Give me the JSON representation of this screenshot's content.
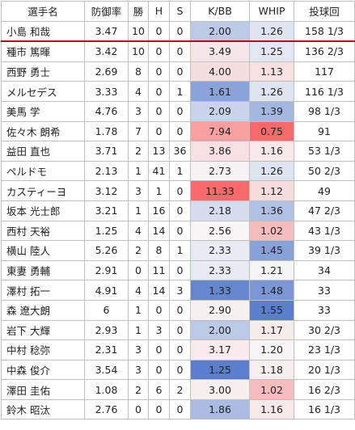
{
  "table": {
    "headers": [
      "選手名",
      "防御率",
      "勝",
      "H",
      "S",
      "K/BB",
      "WHIP",
      "投球回"
    ],
    "rows": [
      [
        "小島 和哉",
        "3.47",
        "10",
        "0",
        "0",
        "2.00",
        "1.26",
        "158 1/3"
      ],
      [
        "種市 篤暉",
        "3.42",
        "10",
        "0",
        "0",
        "3.49",
        "1.25",
        "136 2/3"
      ],
      [
        "西野 勇士",
        "2.69",
        "8",
        "0",
        "0",
        "4.00",
        "1.13",
        "117"
      ],
      [
        "メルセデス",
        "3.33",
        "4",
        "0",
        "1",
        "1.61",
        "1.26",
        "116 1/3"
      ],
      [
        "美馬 学",
        "4.76",
        "3",
        "0",
        "0",
        "2.09",
        "1.39",
        "98 1/3"
      ],
      [
        "佐々木 朗希",
        "1.78",
        "7",
        "0",
        "0",
        "7.94",
        "0.75",
        "91"
      ],
      [
        "益田 直也",
        "3.71",
        "2",
        "13",
        "36",
        "3.86",
        "1.16",
        "53 1/3"
      ],
      [
        "ペルドモ",
        "2.13",
        "1",
        "41",
        "1",
        "2.73",
        "1.26",
        "50 2/3"
      ],
      [
        "カスティーヨ",
        "3.12",
        "3",
        "1",
        "0",
        "11.33",
        "1.12",
        "49"
      ],
      [
        "坂本 光士郎",
        "3.21",
        "1",
        "16",
        "0",
        "2.18",
        "1.36",
        "47 2/3"
      ],
      [
        "西村 天裕",
        "1.25",
        "4",
        "14",
        "0",
        "2.56",
        "1.02",
        "43 1/3"
      ],
      [
        "横山 陸人",
        "5.26",
        "2",
        "8",
        "1",
        "2.33",
        "1.45",
        "39 1/3"
      ],
      [
        "東妻 勇輔",
        "2.91",
        "0",
        "11",
        "0",
        "2.33",
        "1.21",
        "34"
      ],
      [
        "澤村 拓一",
        "4.91",
        "4",
        "14",
        "3",
        "1.33",
        "1.48",
        "33"
      ],
      [
        "森 遼大朗",
        "6",
        "1",
        "0",
        "0",
        "2.90",
        "1.55",
        "33"
      ],
      [
        "岩下 大輝",
        "2.93",
        "1",
        "3",
        "0",
        "2.00",
        "1.17",
        "30 2/3"
      ],
      [
        "中村 稔弥",
        "2.31",
        "3",
        "0",
        "0",
        "3.17",
        "1.20",
        "23 1/3"
      ],
      [
        "中森 俊介",
        "3.54",
        "3",
        "0",
        "0",
        "1.25",
        "1.18",
        "20 1/3"
      ],
      [
        "澤田 圭佑",
        "1.08",
        "2",
        "6",
        "2",
        "3.00",
        "1.02",
        "16 2/3"
      ],
      [
        "鈴木 昭汰",
        "2.76",
        "0",
        "0",
        "0",
        "1.86",
        "1.16",
        "16 1/3"
      ]
    ],
    "colors": {
      "grid": "#bfbfbf",
      "separator": "#c00000",
      "scale_low": "#5b7fcc",
      "scale_mid": "#f7f7f7",
      "scale_high": "#f8696b"
    }
  }
}
